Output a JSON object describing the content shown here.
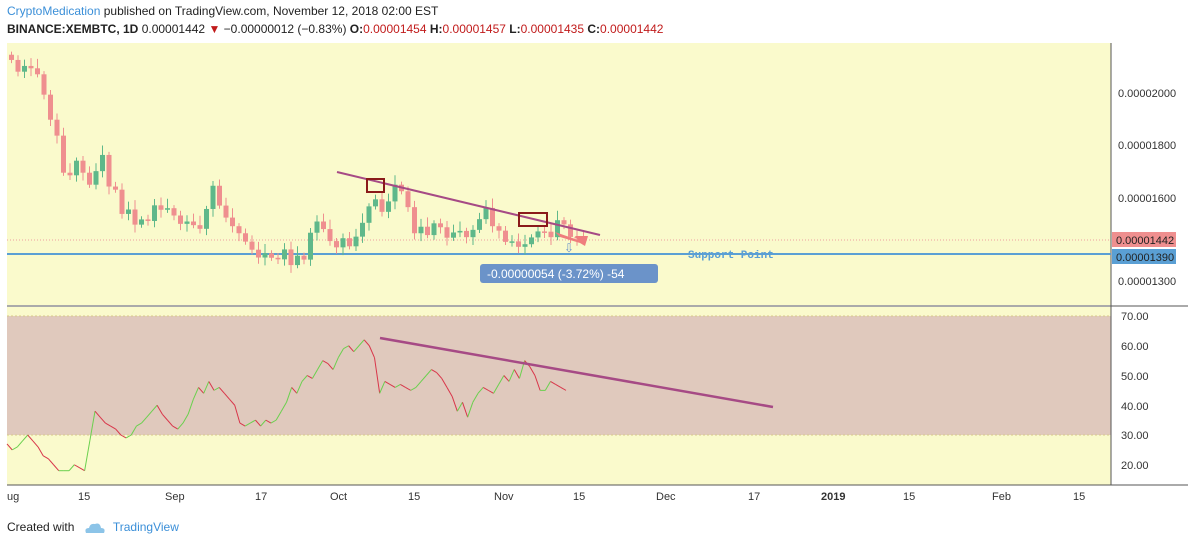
{
  "header": {
    "author": "CryptoMedication",
    "published": "published on TradingView.com, November 12, 2018 02:00 EST",
    "symbol": "BINANCE:XEMBTC, 1D",
    "last": "0.00001442",
    "change_arrow": "down-triangle-icon",
    "change": "−0.00000012 (−0.83%)",
    "o_label": "O:",
    "o_value": "0.00001454",
    "h_label": "H:",
    "h_value": "0.00001457",
    "l_label": "L:",
    "l_value": "0.00001435",
    "c_label": "C:",
    "c_value": "0.00001442"
  },
  "footer": {
    "created_with": "Created with",
    "brand": "TradingView",
    "brand_icon": "tradingview-cloud-icon"
  },
  "colors": {
    "background": "#ffffff",
    "panel": "#fafacc",
    "up": "#5fb88a",
    "down": "#ef8f8f",
    "trendline": "#a64a85",
    "support": "#5a9fd4",
    "rsi_band": "#e0c9bd",
    "rsi_up": "#6ad04e",
    "rsi_down": "#d8364a",
    "measure": "#6b93c9"
  },
  "chart_data": [
    {
      "type": "candlestick",
      "symbol": "BINANCE:XEMBTC",
      "interval": "1D",
      "ylim": [
        1.23e-05,
        2.27e-05
      ],
      "y_ticks": [
        "0.00001300",
        "0.00001600",
        "0.00001800",
        "0.00002000"
      ],
      "x_tick_labels": [
        "ug",
        "15",
        "Sep",
        "17",
        "Oct",
        "15",
        "Nov",
        "15",
        "Dec",
        "17",
        "2019",
        "15",
        "Feb",
        "15"
      ],
      "price_labels": {
        "last": "0.00001442",
        "support": "0.00001390"
      },
      "candles_close": [
        2.132,
        2.087,
        2.109,
        2.1,
        2.077,
        1.999,
        1.903,
        1.842,
        1.7,
        1.69,
        1.746,
        1.7,
        1.654,
        1.706,
        1.768,
        1.647,
        1.635,
        1.542,
        1.559,
        1.501,
        1.521,
        1.515,
        1.575,
        1.558,
        1.564,
        1.536,
        1.504,
        1.513,
        1.499,
        1.485,
        1.561,
        1.65,
        1.574,
        1.528,
        1.495,
        1.468,
        1.436,
        1.405,
        1.375,
        1.391,
        1.374,
        1.368,
        1.406,
        1.346,
        1.382,
        1.367,
        1.47,
        1.513,
        1.484,
        1.438,
        1.414,
        1.449,
        1.418,
        1.455,
        1.508,
        1.571,
        1.598,
        1.55,
        1.59,
        1.654,
        1.629,
        1.568,
        1.468,
        1.493,
        1.461,
        1.506,
        1.491,
        1.451,
        1.471,
        1.477,
        1.453,
        1.481,
        1.522,
        1.565,
        1.495,
        1.478,
        1.435,
        1.437,
        1.416,
        1.426,
        1.452,
        1.475,
        1.474,
        1.453,
        1.518,
        1.502,
        1.454,
        1.45,
        1.442
      ],
      "annotations": {
        "trendline_label": "",
        "support_label": "Support Point",
        "measure_label": "-0.00000054 (-3.72%) -54"
      }
    },
    {
      "type": "line",
      "indicator": "RSI",
      "ylim": [
        14,
        72
      ],
      "y_ticks": [
        "20.00",
        "30.00",
        "40.00",
        "50.00",
        "60.00",
        "70.00"
      ],
      "band": [
        30,
        70
      ],
      "values": [
        27,
        25,
        26,
        28,
        30,
        28,
        26,
        23,
        22,
        20,
        18,
        18,
        18,
        20,
        19,
        18,
        28,
        38,
        36,
        34,
        33,
        32,
        30,
        29,
        30,
        33,
        34,
        36,
        38,
        40,
        37,
        35,
        33,
        32,
        34,
        37,
        42,
        46,
        44,
        48,
        45,
        46,
        44,
        42,
        40,
        34,
        33,
        34,
        35,
        33,
        35,
        34,
        35,
        38,
        41,
        46,
        44,
        48,
        50,
        49,
        52,
        55,
        54,
        52,
        56,
        59,
        60,
        58,
        60,
        62,
        60,
        56,
        44,
        48,
        47,
        46,
        47,
        46,
        45,
        46,
        48,
        50,
        52,
        51,
        49,
        46,
        43,
        38,
        41,
        36,
        41,
        44,
        46,
        45,
        44,
        47,
        50,
        48,
        52,
        49,
        55,
        53,
        50,
        45,
        45,
        48,
        47,
        46,
        45
      ]
    }
  ]
}
